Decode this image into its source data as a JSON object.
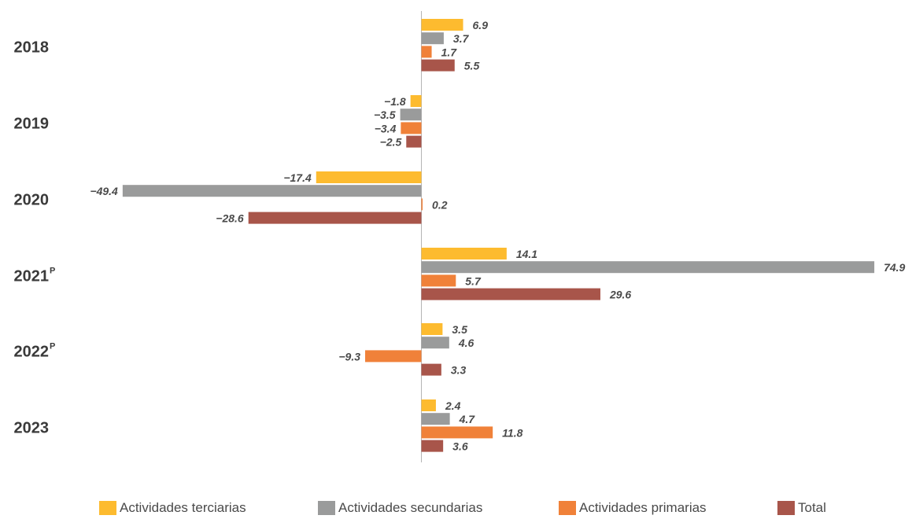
{
  "chart_data": {
    "type": "bar",
    "orientation": "horizontal",
    "categories": [
      "2018",
      "2019",
      "2020",
      "2021",
      "2022",
      "2023"
    ],
    "category_superscripts": [
      "",
      "",
      "",
      "P",
      "P",
      ""
    ],
    "series": [
      {
        "name": "Actividades terciarias",
        "color": "#FDBB2F",
        "values": [
          6.9,
          -1.8,
          -17.4,
          14.1,
          3.5,
          2.4
        ],
        "labels": [
          "6.9",
          "−1.8",
          "−17.4",
          "14.1",
          "3.5",
          "2.4"
        ]
      },
      {
        "name": "Actividades secundarias",
        "color": "#9A9B9B",
        "values": [
          3.7,
          -3.5,
          -49.4,
          74.9,
          4.6,
          4.7
        ],
        "labels": [
          "3.7",
          "−3.5",
          "−49.4",
          "74.9",
          "4.6",
          "4.7"
        ]
      },
      {
        "name": "Actividades primarias",
        "color": "#F08139",
        "values": [
          1.7,
          -3.4,
          0.2,
          5.7,
          -9.3,
          11.8
        ],
        "labels": [
          "1.7",
          "−3.4",
          "0.2",
          "5.7",
          "−9.3",
          "11.8"
        ]
      },
      {
        "name": "Total",
        "color": "#A8554A",
        "values": [
          5.5,
          -2.5,
          -28.6,
          29.6,
          3.3,
          3.6
        ],
        "labels": [
          "5.5",
          "−2.5",
          "−28.6",
          "29.6",
          "3.3",
          "3.6"
        ]
      }
    ],
    "xlim": [
      -49.4,
      74.9
    ],
    "grid": false,
    "legend_position": "bottom"
  }
}
